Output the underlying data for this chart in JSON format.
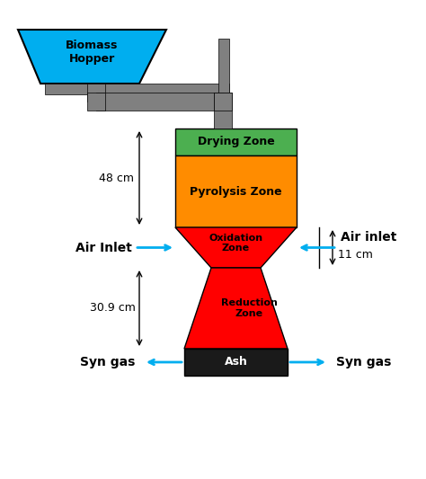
{
  "bg_color": "#ffffff",
  "hopper_color": "#00AEEF",
  "hopper_label": "Biomass\nHopper",
  "pipe_color": "#808080",
  "drying_color": "#4CAF50",
  "drying_label": "Drying Zone",
  "pyrolysis_color": "#FF8C00",
  "pyrolysis_label": "Pyrolysis Zone",
  "oxidation_color": "#FF0000",
  "oxidation_label": "Oxidation\nZone",
  "reduction_color": "#FF0000",
  "reduction_label": "Reduction\nZone",
  "ash_color": "#1a1a1a",
  "ash_label": "Ash",
  "label_48": "48 cm",
  "label_309": "30.9 cm",
  "label_11": "11 cm",
  "label_air_inlet_left": "Air Inlet",
  "label_air_inlet_right": "Air inlet",
  "label_syngas_left": "Syn gas",
  "label_syngas_right": "Syn gas",
  "arrow_color": "#00AEEF",
  "text_color": "#000000",
  "bold_labels": true
}
